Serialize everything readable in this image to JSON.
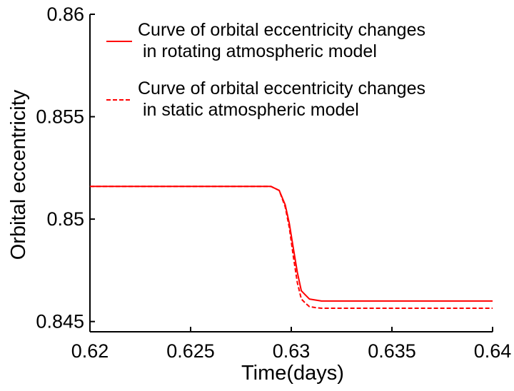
{
  "chart_data": {
    "type": "line",
    "xlabel": "Time(days)",
    "ylabel": "Orbital eccentricity",
    "xlim": [
      0.62,
      0.64
    ],
    "ylim": [
      0.8445,
      0.86
    ],
    "xticks": [
      0.62,
      0.625,
      0.63,
      0.635,
      0.64
    ],
    "xtick_labels": [
      "0.62",
      "0.625",
      "0.63",
      "0.635",
      "0.64"
    ],
    "yticks": [
      0.845,
      0.85,
      0.855,
      0.86
    ],
    "ytick_labels": [
      "0.845",
      "0.85",
      "0.855",
      "0.86"
    ],
    "grid": false,
    "legend_position": "top-right",
    "series": [
      {
        "name_lines": [
          "Curve of orbital eccentricity changes",
          " in rotating atmospheric model"
        ],
        "color": "#ff0000",
        "style": "solid",
        "x": [
          0.62,
          0.6289,
          0.629,
          0.6294,
          0.6297,
          0.6299,
          0.6301,
          0.6303,
          0.6305,
          0.6307,
          0.6309,
          0.6312,
          0.6315,
          0.632,
          0.64
        ],
        "y": [
          0.8516,
          0.8516,
          0.85159,
          0.8514,
          0.8507,
          0.8498,
          0.8486,
          0.8474,
          0.8465,
          0.8463,
          0.8461,
          0.84605,
          0.846,
          0.846,
          0.846
        ]
      },
      {
        "name_lines": [
          "Curve of orbital eccentricity changes",
          " in static atmospheric model"
        ],
        "color": "#ff0000",
        "style": "dashed",
        "x": [
          0.62,
          0.6289,
          0.629,
          0.6294,
          0.6297,
          0.6299,
          0.6301,
          0.6303,
          0.6305,
          0.6307,
          0.6309,
          0.6312,
          0.6315,
          0.632,
          0.64
        ],
        "y": [
          0.8516,
          0.8516,
          0.85159,
          0.8514,
          0.8506,
          0.8496,
          0.8482,
          0.8469,
          0.8461,
          0.8459,
          0.84573,
          0.84568,
          0.84565,
          0.84565,
          0.84565
        ]
      }
    ]
  }
}
